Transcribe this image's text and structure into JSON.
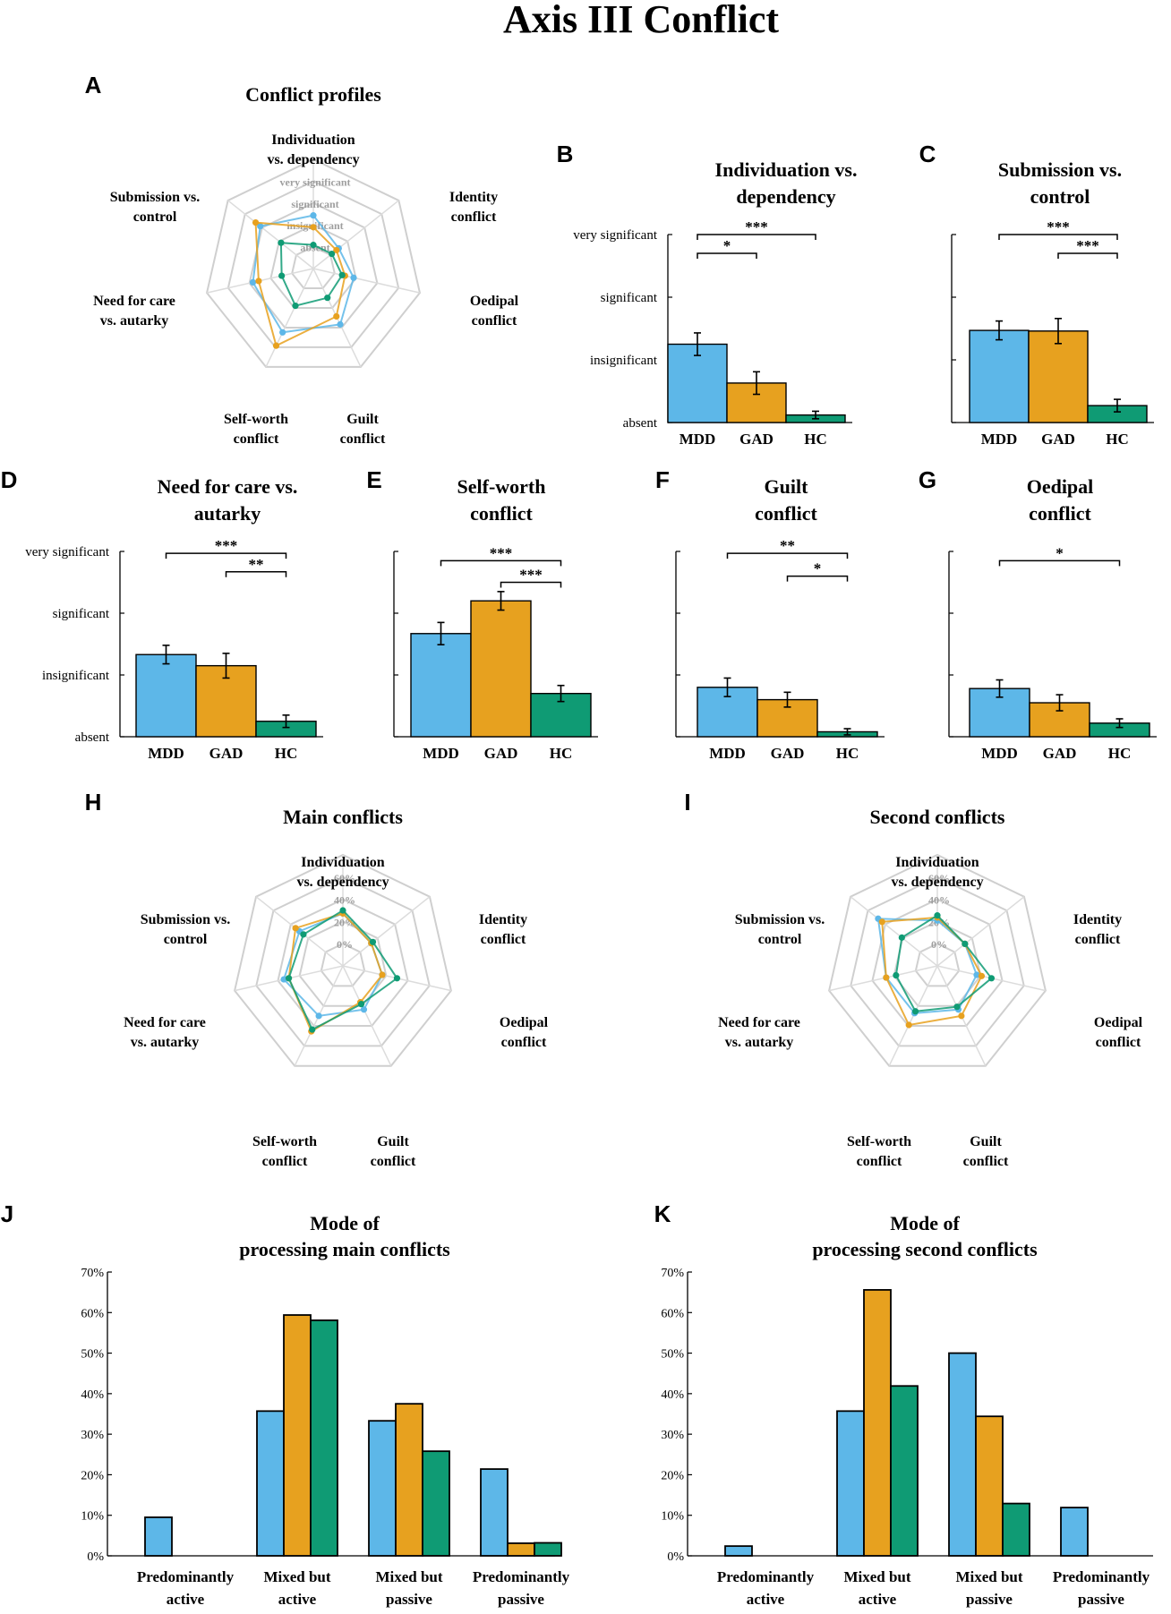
{
  "figure_title": "Axis III Conflict",
  "colors": {
    "MDD": "#5db7e8",
    "GAD": "#e7a11f",
    "HC": "#0f9b74"
  },
  "chart_data": [
    {
      "id": "A",
      "type": "radar",
      "title": "Conflict profiles",
      "axes": [
        "Individuation vs. dependency",
        "Identity conflict",
        "Oedipal conflict",
        "Guilt conflict",
        "Self-worth conflict",
        "Need for care vs. autarky",
        "Submission vs. control"
      ],
      "axis_labels": [
        [
          "Individuation",
          "vs. dependency"
        ],
        [
          "Identity",
          "conflict"
        ],
        [
          "Oedipal",
          "conflict"
        ],
        [
          "Guilt",
          "conflict"
        ],
        [
          "Self-worth",
          "conflict"
        ],
        [
          "Need for care",
          "vs. autarky"
        ],
        [
          "Submission vs.",
          "control"
        ]
      ],
      "ring_labels": [
        "absent",
        "insignificant",
        "significant",
        "very significant"
      ],
      "rmin": -0.5,
      "rmax": 3.2,
      "series": [
        {
          "name": "MDD",
          "values": [
            1.3,
            0.6,
            0.9,
            1.6,
            1.9,
            1.6,
            1.8
          ]
        },
        {
          "name": "GAD",
          "values": [
            0.9,
            0.5,
            0.6,
            1.3,
            2.4,
            1.4,
            2.0
          ]
        },
        {
          "name": "HC",
          "values": [
            0.3,
            0.3,
            0.5,
            0.6,
            0.9,
            0.6,
            0.9
          ]
        }
      ]
    },
    {
      "id": "B",
      "type": "bar",
      "title": "Individuation vs. dependency",
      "title_lines": [
        "Individuation vs.",
        "dependency"
      ],
      "categories": [
        "MDD",
        "GAD",
        "HC"
      ],
      "values": [
        1.25,
        0.63,
        0.12
      ],
      "errors": [
        0.18,
        0.18,
        0.06
      ],
      "ylim": [
        0,
        3
      ],
      "yticks": [
        "absent",
        "insignificant",
        "significant",
        "very significant"
      ],
      "significance": [
        {
          "from": "MDD",
          "to": "HC",
          "label": "***",
          "level": 3.0
        },
        {
          "from": "MDD",
          "to": "GAD",
          "label": "*",
          "level": 2.7
        }
      ]
    },
    {
      "id": "C",
      "type": "bar",
      "title": "Submission vs. control",
      "title_lines": [
        "Submission vs.",
        "control"
      ],
      "categories": [
        "MDD",
        "GAD",
        "HC"
      ],
      "values": [
        1.47,
        1.46,
        0.27
      ],
      "errors": [
        0.15,
        0.2,
        0.1
      ],
      "ylim": [
        0,
        3
      ],
      "yticks": [
        "",
        "",
        "",
        ""
      ],
      "significance": [
        {
          "from": "MDD",
          "to": "HC",
          "label": "***",
          "level": 3.0
        },
        {
          "from": "GAD",
          "to": "HC",
          "label": "***",
          "level": 2.7
        }
      ]
    },
    {
      "id": "D",
      "type": "bar",
      "title": "Need for care vs. autarky",
      "title_lines": [
        "Need for care vs.",
        "autarky"
      ],
      "categories": [
        "MDD",
        "GAD",
        "HC"
      ],
      "values": [
        1.33,
        1.15,
        0.25
      ],
      "errors": [
        0.15,
        0.2,
        0.1
      ],
      "ylim": [
        0,
        3
      ],
      "yticks": [
        "absent",
        "insignificant",
        "significant",
        "very significant"
      ],
      "significance": [
        {
          "from": "MDD",
          "to": "HC",
          "label": "***",
          "level": 2.97
        },
        {
          "from": "GAD",
          "to": "HC",
          "label": "**",
          "level": 2.67
        }
      ]
    },
    {
      "id": "E",
      "type": "bar",
      "title": "Self-worth conflict",
      "title_lines": [
        "Self-worth",
        "conflict"
      ],
      "categories": [
        "MDD",
        "GAD",
        "HC"
      ],
      "values": [
        1.67,
        2.2,
        0.7
      ],
      "errors": [
        0.18,
        0.15,
        0.13
      ],
      "ylim": [
        0,
        3
      ],
      "yticks": [
        "",
        "",
        "",
        ""
      ],
      "significance": [
        {
          "from": "MDD",
          "to": "HC",
          "label": "***",
          "level": 2.85
        },
        {
          "from": "GAD",
          "to": "HC",
          "label": "***",
          "level": 2.5
        }
      ]
    },
    {
      "id": "F",
      "type": "bar",
      "title": "Guilt conflict",
      "title_lines": [
        "Guilt",
        "conflict"
      ],
      "categories": [
        "MDD",
        "GAD",
        "HC"
      ],
      "values": [
        0.8,
        0.6,
        0.08
      ],
      "errors": [
        0.15,
        0.12,
        0.05
      ],
      "ylim": [
        0,
        3
      ],
      "yticks": [
        "",
        "",
        "",
        ""
      ],
      "significance": [
        {
          "from": "MDD",
          "to": "HC",
          "label": "**",
          "level": 2.97
        },
        {
          "from": "GAD",
          "to": "HC",
          "label": "*",
          "level": 2.6
        }
      ]
    },
    {
      "id": "G",
      "type": "bar",
      "title": "Oedipal conflict",
      "title_lines": [
        "Oedipal",
        "conflict"
      ],
      "categories": [
        "MDD",
        "GAD",
        "HC"
      ],
      "values": [
        0.78,
        0.55,
        0.22
      ],
      "errors": [
        0.14,
        0.13,
        0.07
      ],
      "ylim": [
        0,
        3
      ],
      "yticks": [
        "",
        "",
        "",
        ""
      ],
      "significance": [
        {
          "from": "MDD",
          "to": "HC",
          "label": "*",
          "level": 2.85
        }
      ]
    },
    {
      "id": "H",
      "type": "radar",
      "title": "Main conflicts",
      "axes": [
        "Individuation vs. dependency",
        "Identity conflict",
        "Oedipal conflict",
        "Guilt conflict",
        "Self-worth conflict",
        "Need for care vs. autarky",
        "Submission vs. control"
      ],
      "axis_labels": [
        [
          "Individuation",
          "vs. dependency"
        ],
        [
          "Identity",
          "conflict"
        ],
        [
          "Oedipal",
          "conflict"
        ],
        [
          "Guilt",
          "conflict"
        ],
        [
          "Self-worth",
          "conflict"
        ],
        [
          "Need for care",
          "vs. autarky"
        ],
        [
          "Submission vs.",
          "control"
        ]
      ],
      "ring_labels": [
        "0%",
        "20%",
        "40%",
        "60%"
      ],
      "rmin": -30,
      "rmax": 80,
      "series": [
        {
          "name": "MDD",
          "values": [
            22,
            6,
            10,
            18,
            25,
            30,
            25
          ]
        },
        {
          "name": "GAD",
          "values": [
            22,
            6,
            10,
            10,
            42,
            25,
            30
          ]
        },
        {
          "name": "HC",
          "values": [
            25,
            8,
            25,
            12,
            40,
            25,
            20
          ]
        }
      ]
    },
    {
      "id": "I",
      "type": "radar",
      "title": "Second conflicts",
      "axes": [
        "Individuation vs. dependency",
        "Identity conflict",
        "Oedipal conflict",
        "Guilt conflict",
        "Self-worth conflict",
        "Need for care vs. autarky",
        "Submission vs. control"
      ],
      "axis_labels": [
        [
          "Individuation",
          "vs. dependency"
        ],
        [
          "Identity",
          "conflict"
        ],
        [
          "Oedipal",
          "conflict"
        ],
        [
          "Guilt",
          "conflict"
        ],
        [
          "Self-worth",
          "conflict"
        ],
        [
          "Need for care",
          "vs. autarky"
        ],
        [
          "Submission vs.",
          "control"
        ]
      ],
      "ring_labels": [
        "0%",
        "20%",
        "40%",
        "60%"
      ],
      "rmin": -30,
      "rmax": 80,
      "series": [
        {
          "name": "MDD",
          "values": [
            15,
            5,
            10,
            18,
            22,
            22,
            45
          ]
        },
        {
          "name": "GAD",
          "values": [
            18,
            5,
            15,
            25,
            35,
            22,
            40
          ]
        },
        {
          "name": "HC",
          "values": [
            20,
            5,
            25,
            15,
            20,
            12,
            15
          ]
        }
      ]
    },
    {
      "id": "J",
      "type": "bar",
      "title": "Mode of processing main conflicts",
      "title_lines": [
        "Mode of",
        "processing main conflicts"
      ],
      "categories": [
        "Predominantly active",
        "Mixed but active",
        "Mixed but passive",
        "Predominantly passive"
      ],
      "category_lines": [
        [
          "Predominantly",
          "active"
        ],
        [
          "Mixed but",
          "active"
        ],
        [
          "Mixed but",
          "passive"
        ],
        [
          "Predominantly",
          "passive"
        ]
      ],
      "yticks": [
        "0%",
        "10%",
        "20%",
        "30%",
        "40%",
        "50%",
        "60%",
        "70%"
      ],
      "ylim": [
        0,
        70
      ],
      "series": [
        {
          "name": "MDD",
          "values": [
            9.5,
            35.7,
            33.3,
            21.4
          ]
        },
        {
          "name": "GAD",
          "values": [
            0,
            59.4,
            37.5,
            3.1
          ]
        },
        {
          "name": "HC",
          "values": [
            0,
            58.1,
            25.8,
            3.2
          ]
        }
      ]
    },
    {
      "id": "K",
      "type": "bar",
      "title": "Mode of processing second conflicts",
      "title_lines": [
        "Mode of",
        "processing second conflicts"
      ],
      "categories": [
        "Predominantly active",
        "Mixed but active",
        "Mixed but passive",
        "Predominantly passive"
      ],
      "category_lines": [
        [
          "Predominantly",
          "active"
        ],
        [
          "Mixed but",
          "active"
        ],
        [
          "Mixed but",
          "passive"
        ],
        [
          "Predominantly",
          "passive"
        ]
      ],
      "yticks": [
        "0%",
        "10%",
        "20%",
        "30%",
        "40%",
        "50%",
        "60%",
        "70%"
      ],
      "ylim": [
        0,
        70
      ],
      "series": [
        {
          "name": "MDD",
          "values": [
            2.4,
            35.7,
            50.0,
            11.9
          ]
        },
        {
          "name": "GAD",
          "values": [
            0,
            65.6,
            34.4,
            0
          ]
        },
        {
          "name": "HC",
          "values": [
            0,
            41.9,
            12.9,
            0
          ]
        }
      ]
    }
  ]
}
